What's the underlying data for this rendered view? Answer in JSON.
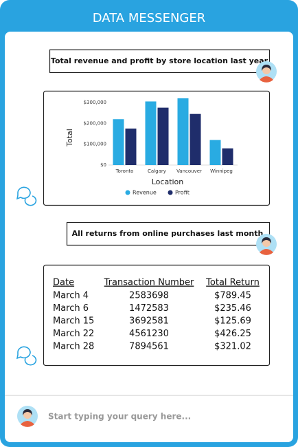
{
  "header": {
    "title": "DATA MESSENGER"
  },
  "messages": [
    {
      "query": "Total revenue and profit by store location last year"
    },
    {
      "query": "All returns from online purchases last month"
    }
  ],
  "chart_data": {
    "type": "bar",
    "x_label": "Location",
    "y_label": "Total",
    "categories": [
      "Toronto",
      "Calgary",
      "Vancouver",
      "Winnipeg"
    ],
    "series": [
      {
        "name": "Revenue",
        "color": "#29abe2",
        "values": [
          220000,
          305000,
          320000,
          120000
        ]
      },
      {
        "name": "Profit",
        "color": "#1f2d6b",
        "values": [
          175000,
          275000,
          245000,
          80000
        ]
      }
    ],
    "ylim": [
      0,
      330000
    ],
    "yticks": [
      {
        "value": 0,
        "label": "$0"
      },
      {
        "value": 100000,
        "label": "$100,000"
      },
      {
        "value": 200000,
        "label": "$200,000"
      },
      {
        "value": 300000,
        "label": "$300,000"
      }
    ],
    "legend": "bottom"
  },
  "table": {
    "columns": [
      "Date",
      "Transaction Number",
      "Total Return"
    ],
    "rows": [
      [
        "March 4",
        "2583698",
        "$789.45"
      ],
      [
        "March 6",
        "1472583",
        "$235.46"
      ],
      [
        "March 15",
        "3692581",
        "$125.69"
      ],
      [
        "March 22",
        "4561230",
        "$426.25"
      ],
      [
        "March 28",
        "7894561",
        "$321.02"
      ]
    ]
  },
  "input": {
    "placeholder": "Start typing your query here..."
  }
}
